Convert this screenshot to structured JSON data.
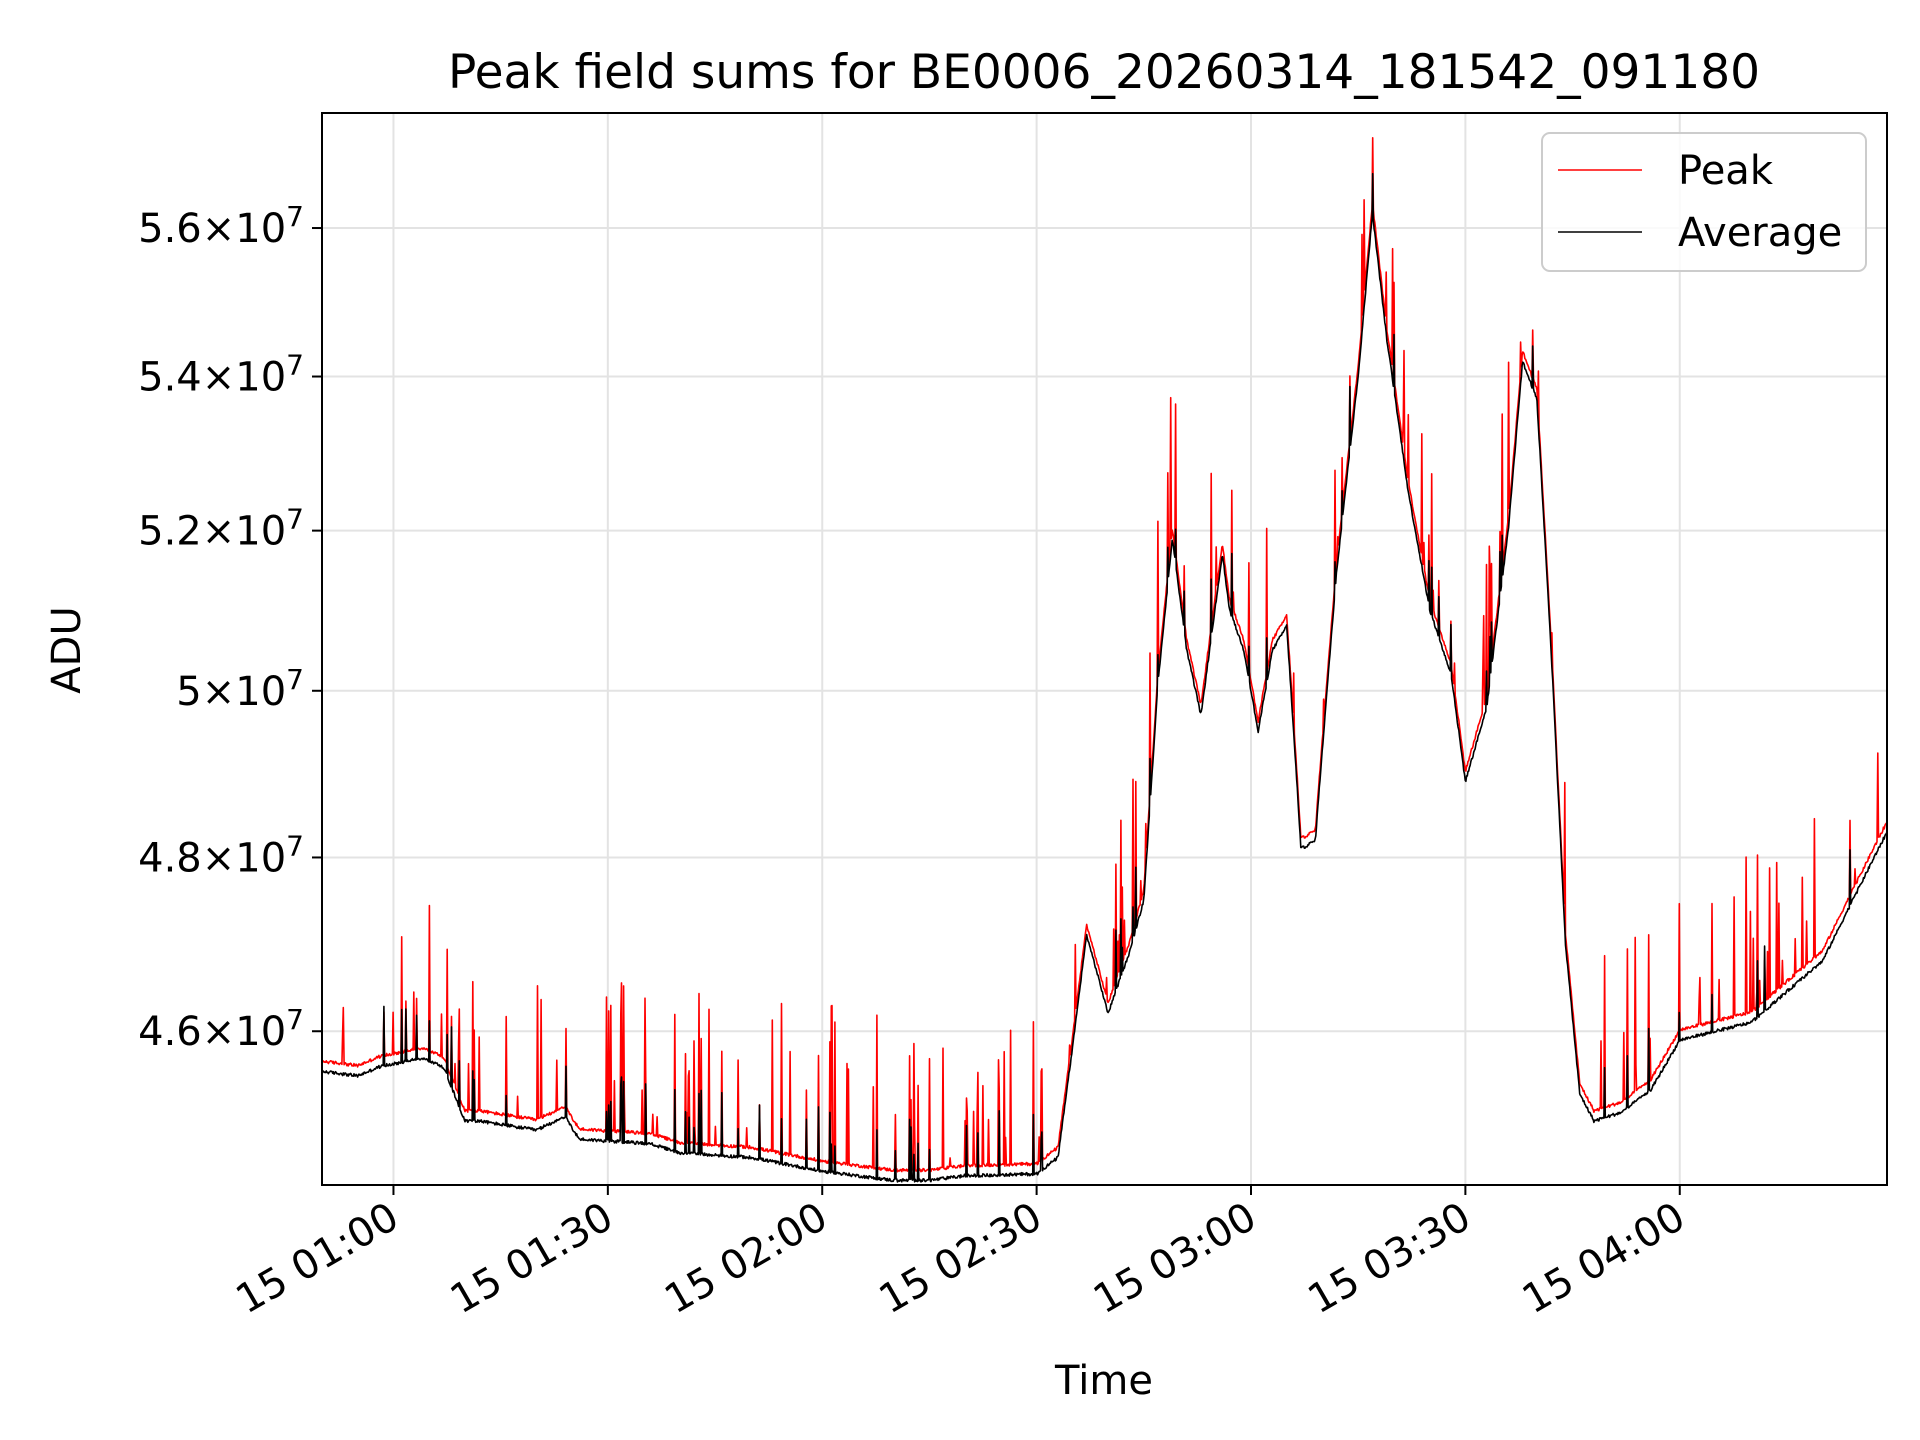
{
  "chart_data": {
    "type": "line",
    "title": "Peak field sums for BE0006_20260314_181542_091180",
    "xlabel": "Time",
    "ylabel": "ADU",
    "x_unit": "minutes",
    "xlim": [
      "15 00:50",
      "15 04:29"
    ],
    "ylim": [
      44300000,
      57600000
    ],
    "y_scale": "log",
    "grid": true,
    "legend_position": "top-right",
    "x_ticks": [
      {
        "t": "15 01:00",
        "label": "15 01:00"
      },
      {
        "t": "15 01:30",
        "label": "15 01:30"
      },
      {
        "t": "15 02:00",
        "label": "15 02:00"
      },
      {
        "t": "15 02:30",
        "label": "15 02:30"
      },
      {
        "t": "15 03:00",
        "label": "15 03:00"
      },
      {
        "t": "15 03:30",
        "label": "15 03:30"
      },
      {
        "t": "15 04:00",
        "label": "15 04:00"
      }
    ],
    "y_ticks": [
      {
        "v": 46000000,
        "mant": "4.6",
        "exp": "7"
      },
      {
        "v": 48000000,
        "mant": "4.8",
        "exp": "7"
      },
      {
        "v": 50000000,
        "mant": "5",
        "exp": "7"
      },
      {
        "v": 52000000,
        "mant": "5.2",
        "exp": "7"
      },
      {
        "v": 54000000,
        "mant": "5.4",
        "exp": "7"
      },
      {
        "v": 56000000,
        "mant": "5.6",
        "exp": "7"
      }
    ],
    "baseline_keypoints": [
      [
        "15 00:50",
        45550000
      ],
      [
        "15 00:55",
        45500000
      ],
      [
        "15 00:58",
        45600000
      ],
      [
        "15 01:04",
        45700000
      ],
      [
        "15 01:07",
        45600000
      ],
      [
        "15 01:10",
        45000000
      ],
      [
        "15 01:12",
        45000000
      ],
      [
        "15 01:20",
        44900000
      ],
      [
        "15 01:24",
        45050000
      ],
      [
        "15 01:26",
        44800000
      ],
      [
        "15 01:36",
        44750000
      ],
      [
        "15 01:40",
        44650000
      ],
      [
        "15 01:50",
        44600000
      ],
      [
        "15 02:00",
        44450000
      ],
      [
        "15 02:10",
        44350000
      ],
      [
        "15 02:15",
        44350000
      ],
      [
        "15 02:20",
        44400000
      ],
      [
        "15 02:30",
        44420000
      ],
      [
        "15 02:33",
        44600000
      ],
      [
        "15 02:35",
        45800000
      ],
      [
        "15 02:37",
        47100000
      ],
      [
        "15 02:38",
        46800000
      ],
      [
        "15 02:40",
        46200000
      ],
      [
        "15 02:43",
        46900000
      ],
      [
        "15 02:45",
        47500000
      ],
      [
        "15 02:47",
        50100000
      ],
      [
        "15 02:49",
        51900000
      ],
      [
        "15 02:51",
        50500000
      ],
      [
        "15 02:53",
        49700000
      ],
      [
        "15 02:56",
        51700000
      ],
      [
        "15 02:57",
        51000000
      ],
      [
        "15 02:59",
        50500000
      ],
      [
        "15 03:01",
        49500000
      ],
      [
        "15 03:03",
        50500000
      ],
      [
        "15 03:05",
        50800000
      ],
      [
        "15 03:07",
        48100000
      ],
      [
        "15 03:09",
        48200000
      ],
      [
        "15 03:12",
        51500000
      ],
      [
        "15 03:15",
        54000000
      ],
      [
        "15 03:17",
        56200000
      ],
      [
        "15 03:19",
        54500000
      ],
      [
        "15 03:22",
        52500000
      ],
      [
        "15 03:25",
        51000000
      ],
      [
        "15 03:28",
        50200000
      ],
      [
        "15 03:30",
        48900000
      ],
      [
        "15 03:33",
        49800000
      ],
      [
        "15 03:36",
        52000000
      ],
      [
        "15 03:38",
        54200000
      ],
      [
        "15 03:40",
        53700000
      ],
      [
        "15 03:42",
        50500000
      ],
      [
        "15 03:44",
        47000000
      ],
      [
        "15 03:46",
        45300000
      ],
      [
        "15 03:48",
        45000000
      ],
      [
        "15 03:52",
        45100000
      ],
      [
        "15 03:56",
        45350000
      ],
      [
        "15 04:00",
        45900000
      ],
      [
        "15 04:10",
        46100000
      ],
      [
        "15 04:20",
        46800000
      ],
      [
        "15 04:29",
        48300000
      ]
    ]
  },
  "legend": {
    "items": [
      {
        "label": "Peak",
        "color": "#ff0000"
      },
      {
        "label": "Average",
        "color": "#000000"
      }
    ]
  }
}
